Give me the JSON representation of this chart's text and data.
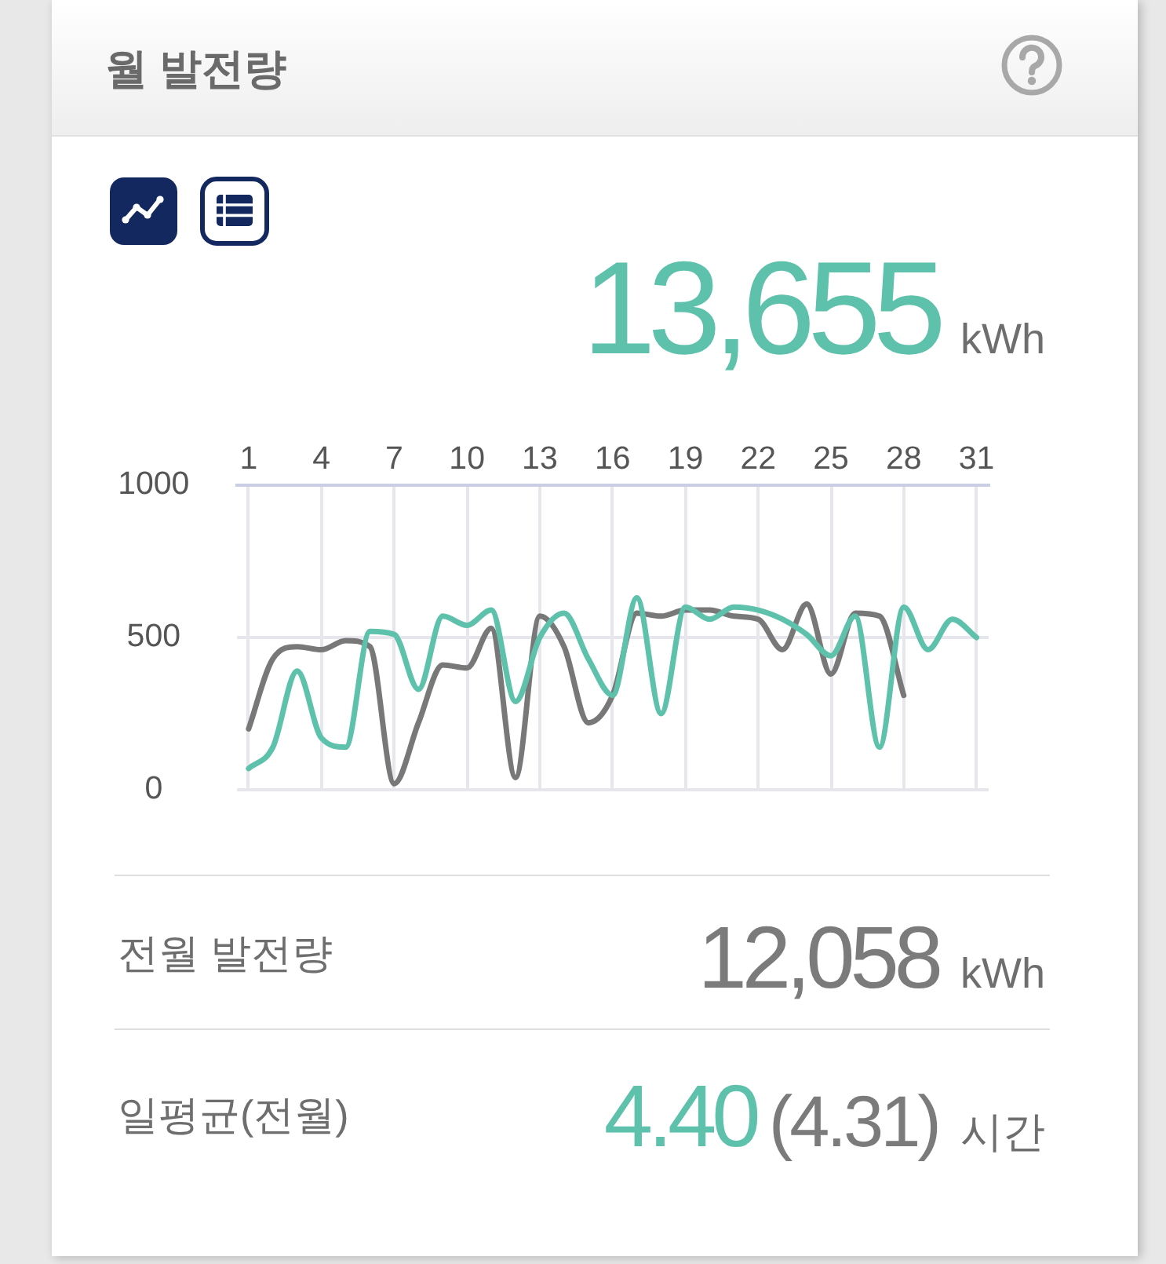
{
  "chart_data": {
    "type": "line",
    "title": "월 발전량",
    "annotations": [
      "13,655",
      "kWh",
      "전월 발전량",
      "12,058",
      "kWh",
      "일평균(전월)",
      "4.40",
      "(4.31)",
      "시간"
    ],
    "x": [
      1,
      2,
      3,
      4,
      5,
      6,
      7,
      8,
      9,
      10,
      11,
      12,
      13,
      14,
      15,
      16,
      17,
      18,
      19,
      20,
      21,
      22,
      23,
      24,
      25,
      26,
      27,
      28,
      29,
      30,
      31
    ],
    "series": [
      {
        "color": "#5dc1ab",
        "values": [
          70,
          140,
          390,
          170,
          140,
          520,
          510,
          330,
          570,
          540,
          590,
          290,
          500,
          580,
          430,
          310,
          630,
          250,
          600,
          560,
          600,
          590,
          560,
          510,
          440,
          570,
          140,
          600,
          460,
          560,
          500
        ]
      },
      {
        "color": "#787878",
        "values": [
          200,
          430,
          470,
          460,
          490,
          470,
          20,
          220,
          410,
          400,
          530,
          40,
          570,
          470,
          220,
          310,
          580,
          570,
          590,
          590,
          570,
          560,
          460,
          610,
          380,
          580,
          570,
          310,
          null,
          null,
          null
        ]
      }
    ],
    "xlim": [
      0.5,
      31.5
    ],
    "xticks": [
      1,
      4,
      7,
      10,
      13,
      16,
      19,
      22,
      25,
      28,
      31
    ],
    "ylim": [
      0,
      1000
    ],
    "yticks": [
      0,
      500,
      1000
    ],
    "grid": true,
    "marker": "none"
  }
}
